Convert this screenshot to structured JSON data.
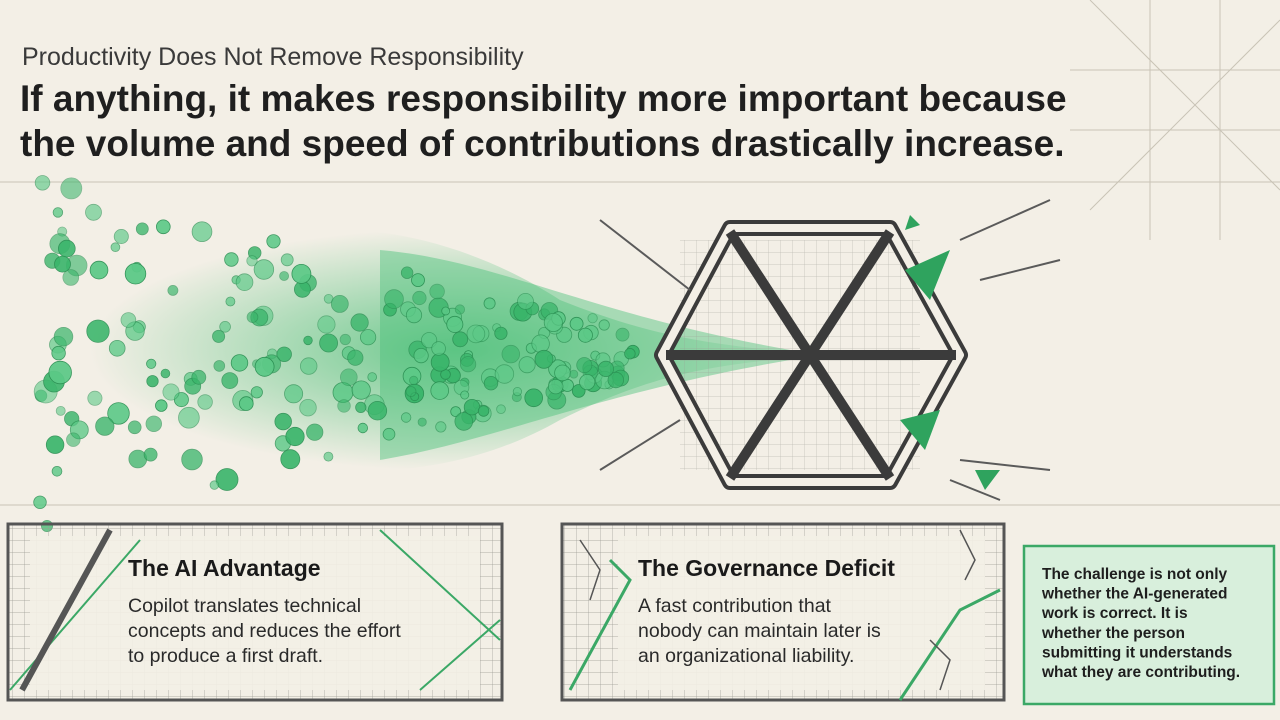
{
  "header": {
    "kicker": "Productivity Does Not Remove Responsibility",
    "headline": [
      "If anything, it makes responsibility more important because",
      "the volume and speed of contributions drastically increase."
    ]
  },
  "cards": [
    {
      "title": "The AI Advantage",
      "body": [
        "Copilot translates technical",
        "concepts and reduces the effort",
        "to produce a first draft."
      ]
    },
    {
      "title": "The Governance Deficit",
      "body": [
        "A fast contribution that",
        "nobody can maintain later is",
        "an organizational liability."
      ]
    }
  ],
  "callout": {
    "lines": [
      "The challenge is not only",
      "whether the AI-generated",
      "work is correct. It is",
      "whether the person",
      "submitting it understands",
      "what they are contributing."
    ]
  }
}
